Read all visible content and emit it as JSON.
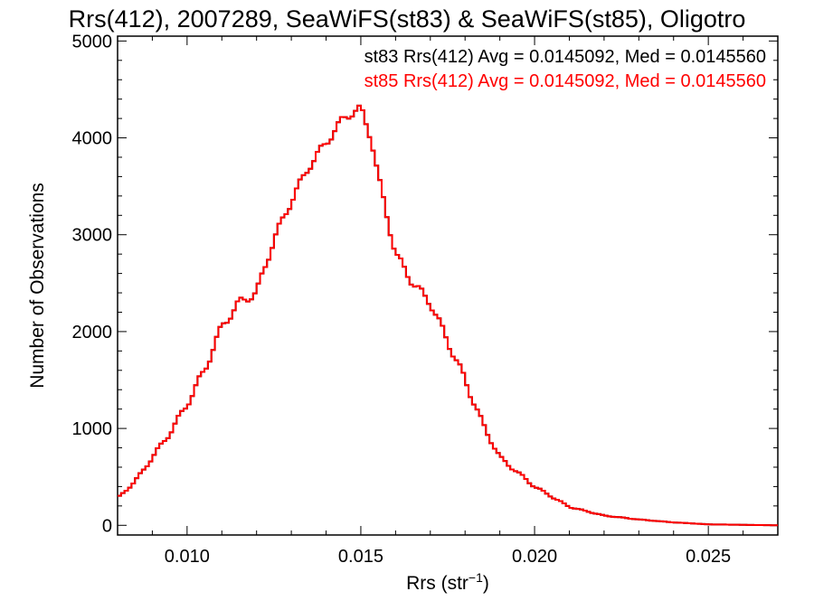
{
  "chart_data": {
    "type": "line",
    "title": "Rrs(412), 2007289, SeaWiFS(st83) & SeaWiFS(st85), Oligotro",
    "xlabel": "Rrs (str",
    "xlabel_sup": "−1",
    "xlabel_close": ")",
    "ylabel": "Number of Observations",
    "xlim": [
      0.008,
      0.027
    ],
    "ylim": [
      -100,
      5050
    ],
    "x_ticks": [
      0.01,
      0.015,
      0.02,
      0.025
    ],
    "x_tick_labels": [
      "0.010",
      "0.015",
      "0.020",
      "0.025"
    ],
    "y_ticks": [
      0,
      1000,
      2000,
      3000,
      4000,
      5000
    ],
    "y_tick_labels": [
      "0",
      "1000",
      "2000",
      "3000",
      "4000",
      "5000"
    ],
    "grid": false,
    "annotations": [
      {
        "text": "st83 Rrs(412) Avg = 0.0145092, Med = 0.0145560",
        "color": "#000000"
      },
      {
        "text": "st85 Rrs(412) Avg = 0.0145092, Med = 0.0145560",
        "color": "#ff0000"
      }
    ],
    "series": [
      {
        "name": "st83",
        "color": "#000000",
        "x": [
          0.008,
          0.0085,
          0.009,
          0.0095,
          0.01,
          0.0105,
          0.011,
          0.0115,
          0.012,
          0.0125,
          0.013,
          0.0135,
          0.014,
          0.0145,
          0.0147,
          0.015,
          0.0153,
          0.0155,
          0.016,
          0.0165,
          0.017,
          0.0175,
          0.018,
          0.0185,
          0.019,
          0.02,
          0.021,
          0.022,
          0.023,
          0.024,
          0.025,
          0.026,
          0.027
        ],
        "y": [
          280,
          450,
          700,
          950,
          1250,
          1600,
          2050,
          2300,
          2400,
          2950,
          3350,
          3700,
          3950,
          4200,
          4250,
          4300,
          4000,
          3600,
          2800,
          2500,
          2300,
          1900,
          1500,
          1050,
          700,
          400,
          190,
          100,
          60,
          30,
          10,
          5,
          0
        ]
      },
      {
        "name": "st85",
        "color": "#ff0000",
        "x": [
          0.008,
          0.0085,
          0.009,
          0.0095,
          0.01,
          0.0105,
          0.011,
          0.0115,
          0.012,
          0.0125,
          0.013,
          0.0135,
          0.014,
          0.0145,
          0.0147,
          0.015,
          0.0153,
          0.0155,
          0.016,
          0.0165,
          0.017,
          0.0175,
          0.018,
          0.0185,
          0.019,
          0.02,
          0.021,
          0.022,
          0.023,
          0.024,
          0.025,
          0.026,
          0.027
        ],
        "y": [
          280,
          450,
          700,
          950,
          1250,
          1600,
          2050,
          2300,
          2400,
          2950,
          3350,
          3700,
          3950,
          4200,
          4250,
          4300,
          4000,
          3600,
          2800,
          2500,
          2300,
          1900,
          1500,
          1050,
          700,
          400,
          190,
          100,
          60,
          30,
          10,
          5,
          0
        ]
      }
    ]
  }
}
